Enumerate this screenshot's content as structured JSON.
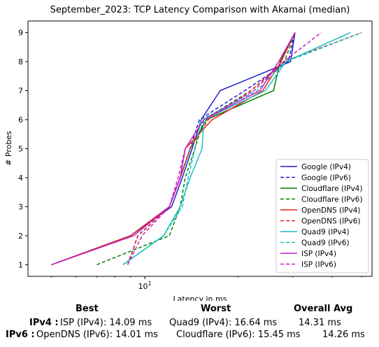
{
  "chart_data": {
    "type": "line",
    "title": "September_2023: TCP Latency Comparison with Akamai (median)",
    "xlabel": "Latency in ms",
    "ylabel": "# Probes",
    "xscale": "log",
    "xlim": [
      4.2,
      54
    ],
    "ylim": [
      0.6,
      9.4
    ],
    "x_ticks": [
      {
        "value": 10,
        "label": "10^1"
      }
    ],
    "y_ticks": [
      1,
      2,
      3,
      4,
      5,
      6,
      7,
      8,
      9
    ],
    "legend_position": "bottom-right",
    "series": [
      {
        "name": "Google (IPv4)",
        "color": "#1f1fd0",
        "dash": "solid",
        "points": [
          [
            5.0,
            1
          ],
          [
            9.0,
            2
          ],
          [
            12.2,
            3
          ],
          [
            13.2,
            4
          ],
          [
            14.2,
            5
          ],
          [
            15.2,
            6
          ],
          [
            17.5,
            7
          ],
          [
            29.5,
            8
          ],
          [
            30.5,
            9
          ]
        ]
      },
      {
        "name": "Google (IPv6)",
        "color": "#1f1fd0",
        "dash": "dashed",
        "points": [
          [
            8.8,
            1
          ],
          [
            9.5,
            2
          ],
          [
            12.0,
            3
          ],
          [
            13.0,
            4
          ],
          [
            14.0,
            5
          ],
          [
            15.0,
            6
          ],
          [
            21.0,
            7
          ],
          [
            29.0,
            8
          ],
          [
            30.5,
            9
          ]
        ]
      },
      {
        "name": "Cloudflare (IPv4)",
        "color": "#008000",
        "dash": "solid",
        "points": [
          [
            5.0,
            1
          ],
          [
            9.0,
            2
          ],
          [
            12.0,
            3
          ],
          [
            13.0,
            4
          ],
          [
            14.0,
            5
          ],
          [
            15.8,
            6
          ],
          [
            26.0,
            7
          ],
          [
            27.3,
            8
          ],
          [
            30.5,
            9
          ]
        ]
      },
      {
        "name": "Cloudflare (IPv6)",
        "color": "#008000",
        "dash": "dashed",
        "points": [
          [
            7.0,
            1
          ],
          [
            12.0,
            2
          ],
          [
            13.0,
            3
          ],
          [
            13.5,
            4
          ],
          [
            14.5,
            5
          ],
          [
            15.5,
            6
          ],
          [
            22.0,
            7
          ],
          [
            28.2,
            8
          ],
          [
            30.5,
            9
          ]
        ]
      },
      {
        "name": "OpenDNS (IPv4)",
        "color": "#e81f1f",
        "dash": "solid",
        "points": [
          [
            5.0,
            1
          ],
          [
            9.0,
            2
          ],
          [
            12.0,
            3
          ],
          [
            13.0,
            4
          ],
          [
            13.5,
            5
          ],
          [
            16.5,
            6
          ],
          [
            24.0,
            7
          ],
          [
            27.5,
            8
          ],
          [
            30.5,
            9
          ]
        ]
      },
      {
        "name": "OpenDNS (IPv6)",
        "color": "#e81f1f",
        "dash": "dashed",
        "points": [
          [
            8.8,
            1
          ],
          [
            9.5,
            2
          ],
          [
            12.0,
            3
          ],
          [
            13.0,
            4
          ],
          [
            14.0,
            5
          ],
          [
            16.0,
            6
          ],
          [
            22.0,
            7
          ],
          [
            28.0,
            8
          ],
          [
            50.0,
            9
          ]
        ]
      },
      {
        "name": "Quad9 (IPv4)",
        "color": "#17bfbf",
        "dash": "solid",
        "points": [
          [
            8.5,
            1
          ],
          [
            11.5,
            2
          ],
          [
            13.0,
            3
          ],
          [
            14.0,
            4
          ],
          [
            15.3,
            5
          ],
          [
            15.5,
            6
          ],
          [
            24.5,
            7
          ],
          [
            28.5,
            8
          ],
          [
            46.0,
            9
          ]
        ]
      },
      {
        "name": "Quad9 (IPv6)",
        "color": "#17bfbf",
        "dash": "dashed",
        "points": [
          [
            8.5,
            1
          ],
          [
            11.5,
            2
          ],
          [
            13.2,
            3
          ],
          [
            13.8,
            4
          ],
          [
            14.5,
            5
          ],
          [
            15.2,
            6
          ],
          [
            23.0,
            7
          ],
          [
            28.5,
            8
          ],
          [
            50.0,
            9
          ]
        ]
      },
      {
        "name": "ISP (IPv4)",
        "color": "#c71fc7",
        "dash": "solid",
        "points": [
          [
            5.0,
            1
          ],
          [
            9.2,
            2
          ],
          [
            12.0,
            3
          ],
          [
            13.0,
            4
          ],
          [
            13.5,
            5
          ],
          [
            15.5,
            6
          ],
          [
            23.5,
            7
          ],
          [
            27.0,
            8
          ],
          [
            30.5,
            9
          ]
        ]
      },
      {
        "name": "ISP (IPv6)",
        "color": "#c71fc7",
        "dash": "dashed",
        "points": [
          [
            8.8,
            1
          ],
          [
            9.8,
            2
          ],
          [
            12.0,
            3
          ],
          [
            12.8,
            4
          ],
          [
            13.5,
            5
          ],
          [
            15.5,
            6
          ],
          [
            22.5,
            7
          ],
          [
            28.0,
            8
          ],
          [
            37.0,
            9
          ]
        ]
      }
    ]
  },
  "summary": {
    "headers": {
      "best": "Best",
      "worst": "Worst",
      "overall": "Overall Avg"
    },
    "rows": [
      {
        "label": "IPv4 :",
        "best": "ISP (IPv4): 14.09 ms",
        "worst": "Quad9 (IPv4): 16.64 ms",
        "overall": "14.31 ms"
      },
      {
        "label": "IPv6 :",
        "best": "OpenDNS (IPv6): 14.01 ms",
        "worst": "Cloudflare (IPv6): 15.45 ms",
        "overall": "14.26 ms"
      }
    ]
  }
}
